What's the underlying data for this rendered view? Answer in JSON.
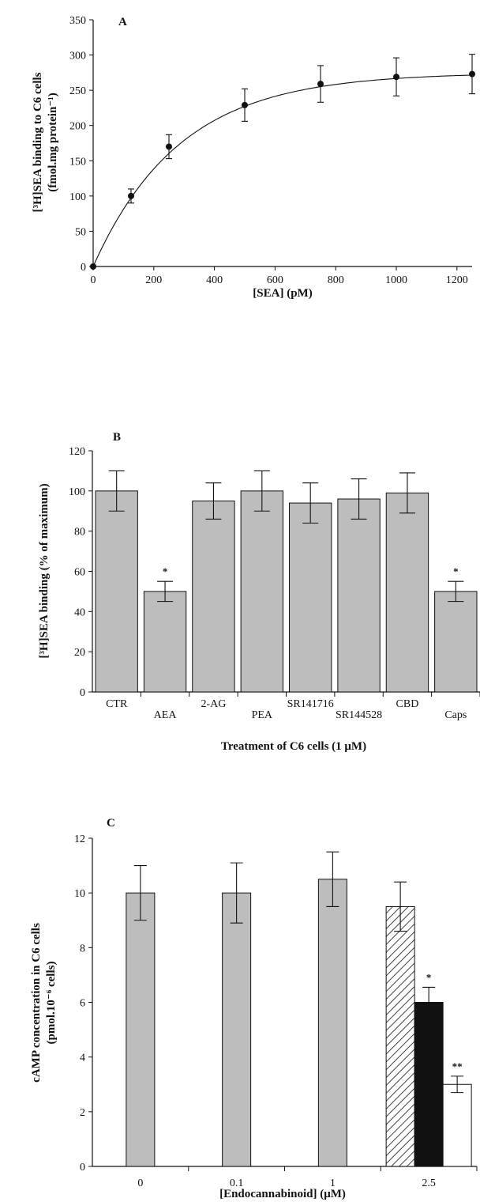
{
  "chart_data": [
    {
      "type": "line",
      "panel_label": "A",
      "xlabel": "[SEA] (pM)",
      "ylabel_line1": "[³H]SEA binding to C6 cells",
      "ylabel_line2": "(fmol.mg protein⁻¹)",
      "xlim": [
        0,
        1250
      ],
      "ylim": [
        0,
        350
      ],
      "xticks": [
        0,
        200,
        400,
        600,
        800,
        1000,
        1200
      ],
      "yticks": [
        0,
        50,
        100,
        150,
        200,
        250,
        300,
        350
      ],
      "points": [
        {
          "x": 0,
          "y": 0,
          "err": 0
        },
        {
          "x": 125,
          "y": 100,
          "err": 10
        },
        {
          "x": 250,
          "y": 170,
          "err": 17
        },
        {
          "x": 500,
          "y": 229,
          "err": 23
        },
        {
          "x": 750,
          "y": 259,
          "err": 26
        },
        {
          "x": 1000,
          "y": 269,
          "err": 27
        },
        {
          "x": 1250,
          "y": 273,
          "err": 28
        }
      ],
      "curve": {
        "bmax": 275,
        "k": 0.0035
      }
    },
    {
      "type": "bar",
      "panel_label": "B",
      "xlabel": "Treatment of C6 cells (1 μM)",
      "ylabel": "[³H]SEA binding (% of maximum)",
      "ylim": [
        0,
        120
      ],
      "yticks": [
        0,
        20,
        40,
        60,
        80,
        100,
        120
      ],
      "categories": [
        "CTR",
        "AEA",
        "2-AG",
        "PEA",
        "SR141716",
        "SR144528",
        "CBD",
        "Caps"
      ],
      "values": [
        100,
        50,
        95,
        100,
        94,
        96,
        99,
        50
      ],
      "errors": [
        10,
        5,
        9,
        10,
        10,
        10,
        10,
        5
      ],
      "significance": [
        "",
        "*",
        "",
        "",
        "",
        "",
        "",
        "*"
      ],
      "bar_color": "#bdbdbd"
    },
    {
      "type": "bar",
      "panel_label": "C",
      "xlabel": "[Endocannabinoid] (μM)",
      "ylabel_line1": "cAMP concentration in C6 cells",
      "ylabel_line2": "(pmol.10⁻⁶ cells)",
      "ylim": [
        0,
        12
      ],
      "yticks": [
        0,
        2,
        4,
        6,
        8,
        10,
        12
      ],
      "categories": [
        "0",
        "0.1",
        "1",
        "2.5"
      ],
      "bars": [
        {
          "category": "0",
          "value": 10,
          "err": 1,
          "fill": "gray",
          "sig": ""
        },
        {
          "category": "0.1",
          "value": 10,
          "err": 1.1,
          "fill": "gray",
          "sig": ""
        },
        {
          "category": "1",
          "value": 10.5,
          "err": 1,
          "fill": "gray",
          "sig": ""
        },
        {
          "category": "2.5",
          "value": 9.5,
          "err": 0.9,
          "fill": "hatched",
          "sig": ""
        },
        {
          "category": "2.5",
          "value": 6,
          "err": 0.55,
          "fill": "black",
          "sig": "*"
        },
        {
          "category": "2.5",
          "value": 3,
          "err": 0.3,
          "fill": "white",
          "sig": "**"
        }
      ],
      "colors": {
        "gray": "#bdbdbd",
        "black": "#111111",
        "white": "#ffffff"
      }
    }
  ]
}
